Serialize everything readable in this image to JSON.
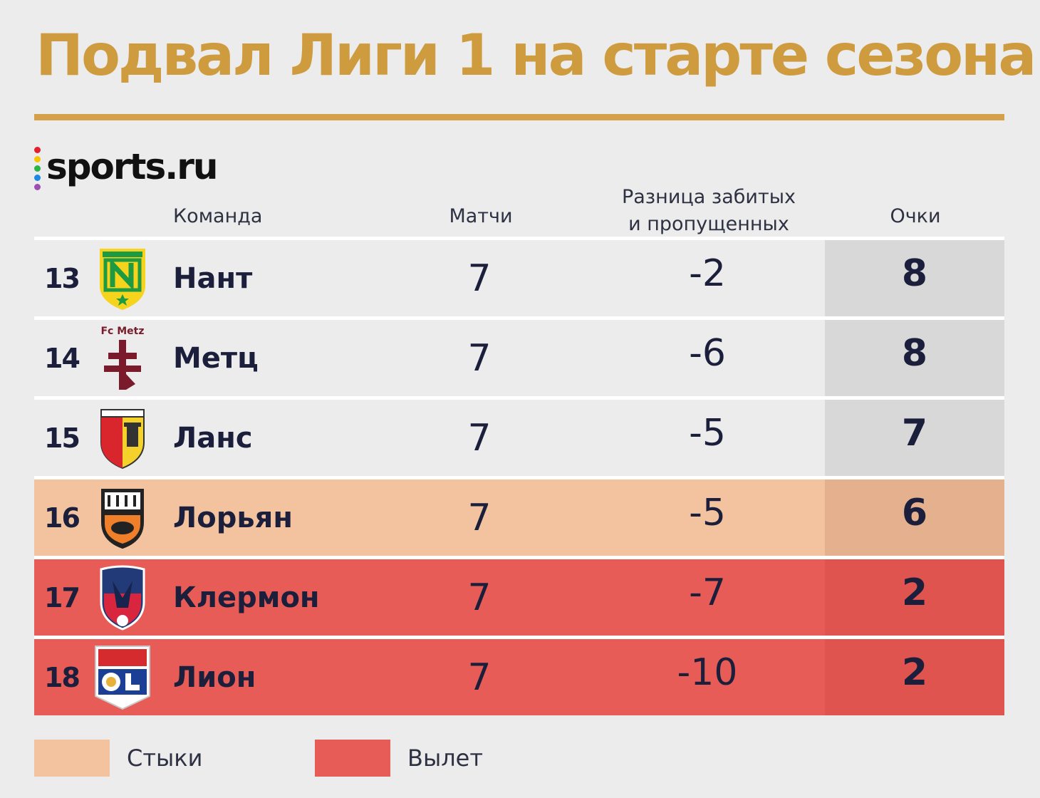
{
  "title": "Подвал Лиги 1 на старте сезона",
  "brand": {
    "logo_text": "sports.ru",
    "dot_colors": [
      "#e4202d",
      "#f7c500",
      "#2cb34a",
      "#1e88e5",
      "#9c4fb0"
    ]
  },
  "colors": {
    "title": "#cf9b3f",
    "playoff": "#f3c3a0",
    "relegation": "#e85c57"
  },
  "headers": {
    "team": "Команда",
    "matches": "Матчи",
    "diff_line1": "Разница забитых",
    "diff_line2": "и пропущенных",
    "points": "Очки"
  },
  "rows": [
    {
      "position": "13",
      "team": "Нант",
      "crest": "nantes-crest",
      "matches": "7",
      "goal_diff": "-2",
      "points": "8",
      "zone": "normal"
    },
    {
      "position": "14",
      "team": "Метц",
      "crest": "metz-crest",
      "crest_text": "Fc Metz",
      "matches": "7",
      "goal_diff": "-6",
      "points": "8",
      "zone": "normal"
    },
    {
      "position": "15",
      "team": "Ланс",
      "crest": "lens-crest",
      "matches": "7",
      "goal_diff": "-5",
      "points": "7",
      "zone": "normal"
    },
    {
      "position": "16",
      "team": "Лорьян",
      "crest": "lorient-crest",
      "matches": "7",
      "goal_diff": "-5",
      "points": "6",
      "zone": "playoff"
    },
    {
      "position": "17",
      "team": "Клермон",
      "crest": "clermont-crest",
      "matches": "7",
      "goal_diff": "-7",
      "points": "2",
      "zone": "relegation"
    },
    {
      "position": "18",
      "team": "Лион",
      "crest": "lyon-crest",
      "matches": "7",
      "goal_diff": "-10",
      "points": "2",
      "zone": "relegation"
    }
  ],
  "legend": {
    "playoff": "Стыки",
    "relegation": "Вылет"
  }
}
